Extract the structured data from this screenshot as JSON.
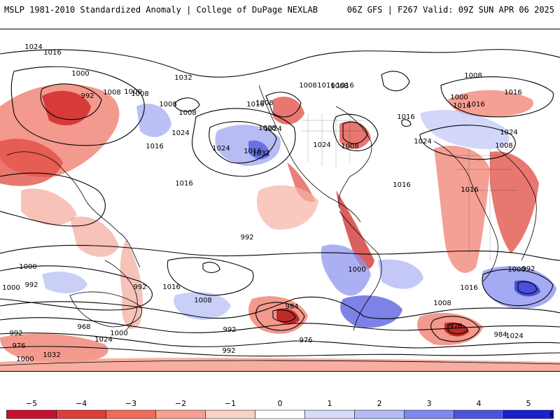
{
  "header": {
    "left": "MSLP 1981-2010 Standardized Anomaly | College of DuPage NEXLAB",
    "right": "06Z GFS | F267 Valid: 09Z SUN APR 06 2025"
  },
  "colorbar": {
    "ticks": [
      "−5",
      "−4",
      "−3",
      "−2",
      "−1",
      "0",
      "1",
      "2",
      "3",
      "4",
      "5"
    ],
    "colors": [
      "#8b0000",
      "#c8102e",
      "#e03a3a",
      "#f06a5a",
      "#f7a090",
      "#fbd0c6",
      "#ffffff",
      "#d8dcfb",
      "#b4bbf5",
      "#7f88ee",
      "#4c55e0",
      "#1a1fcf",
      "#000099"
    ]
  },
  "map": {
    "contour_labels": [
      "1024",
      "1016",
      "1000",
      "992",
      "1008",
      "1008",
      "1016",
      "1024",
      "1032",
      "1024",
      "1008",
      "1016",
      "1008",
      "1000",
      "1016",
      "1016",
      "1008",
      "1024",
      "1016",
      "1032",
      "1024",
      "1008",
      "1008",
      "1016",
      "1016",
      "1008",
      "1008",
      "1016",
      "1016",
      "1024",
      "1016",
      "1008",
      "1000",
      "1016",
      "1024",
      "1016",
      "1008",
      "992",
      "1000",
      "1000",
      "984",
      "976",
      "992",
      "992",
      "968",
      "976",
      "1000",
      "1032",
      "1024",
      "1016",
      "1008",
      "992",
      "992",
      "1000",
      "976",
      "984",
      "1000",
      "992",
      "1024",
      "1016",
      "1008",
      "992",
      "1000"
    ],
    "colors": {
      "warm": "#f08070",
      "warm_dark": "#d02a2a",
      "cool": "#8f96ef",
      "cool_dark": "#3a3fd6"
    }
  }
}
